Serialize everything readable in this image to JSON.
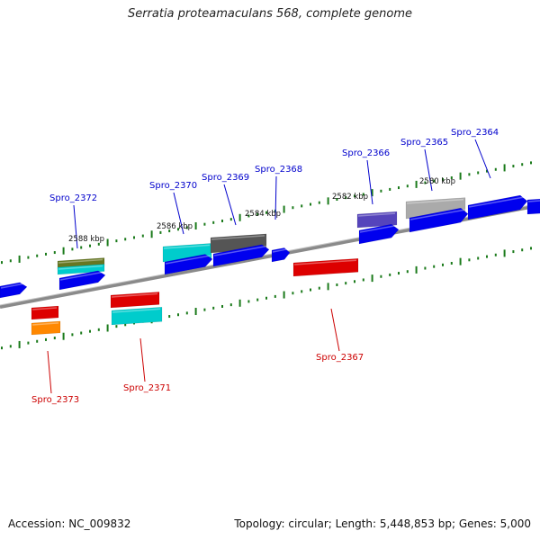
{
  "title": "Serratia proteamaculans 568, complete genome",
  "footer": {
    "accession": "Accession: NC_009832",
    "summary": "Topology: circular; Length: 5,448,853 bp; Genes: 5,000"
  },
  "colors": {
    "label_top": "#0000cc",
    "label_bottom": "#cc0000",
    "tick": "#1a7a1a",
    "backbone": "#777777"
  },
  "scale_labels": [
    "2588 kbp",
    "2586 kbp",
    "2584 kbp",
    "2582 kbp",
    "2580 kbp"
  ],
  "gene_labels_top": [
    "Spro_2372",
    "Spro_2370",
    "Spro_2369",
    "Spro_2368",
    "Spro_2366",
    "Spro_2365",
    "Spro_2364"
  ],
  "gene_labels_bottom": [
    "Spro_2373",
    "Spro_2371",
    "Spro_2367"
  ],
  "feature_colors": [
    "#0000ee",
    "#dd0000",
    "#00cccc",
    "#ff8800",
    "#5544bb",
    "#aaaaaa",
    "#555555",
    "#667722"
  ]
}
